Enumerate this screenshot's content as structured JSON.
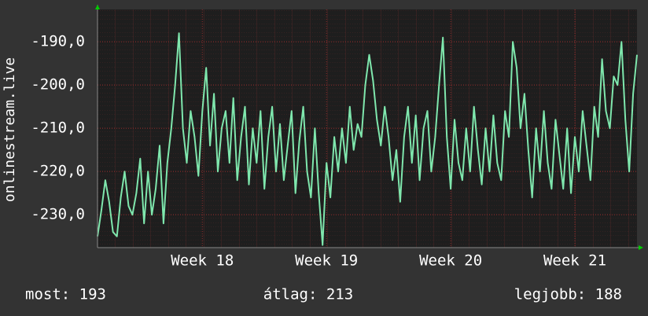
{
  "y_axis_label": "onlinestream.live",
  "chart_data": {
    "type": "line",
    "color": "#7fe7ad",
    "grid": true,
    "xlim": [
      0,
      139
    ],
    "xticks": [
      {
        "value": 27,
        "label": "Week 18"
      },
      {
        "value": 59,
        "label": "Week 19"
      },
      {
        "value": 91,
        "label": "Week 20"
      },
      {
        "value": 123,
        "label": "Week 21"
      }
    ],
    "ylim": [
      -237.6,
      -182.5
    ],
    "yticks": [
      {
        "value": -230,
        "label": "-230,0"
      },
      {
        "value": -220,
        "label": "-220,0"
      },
      {
        "value": -210,
        "label": "-210,0"
      },
      {
        "value": -200,
        "label": "-200,0"
      },
      {
        "value": -190,
        "label": "-190,0"
      }
    ],
    "values": [
      -235,
      -229,
      -222,
      -227,
      -234,
      -235,
      -226,
      -220,
      -228,
      -230,
      -225,
      -217,
      -232,
      -220,
      -230,
      -224,
      -214,
      -232,
      -218,
      -210,
      -200,
      -188,
      -210,
      -218,
      -206,
      -212,
      -221,
      -206,
      -196,
      -214,
      -202,
      -220,
      -210,
      -206,
      -218,
      -203,
      -222,
      -212,
      -205,
      -223,
      -210,
      -218,
      -206,
      -224,
      -212,
      -205,
      -220,
      -209,
      -222,
      -214,
      -206,
      -225,
      -213,
      -205,
      -220,
      -226,
      -210,
      -225,
      -237,
      -218,
      -226,
      -212,
      -220,
      -210,
      -218,
      -205,
      -215,
      -209,
      -212,
      -200,
      -193,
      -199,
      -208,
      -214,
      -205,
      -212,
      -222,
      -215,
      -227,
      -212,
      -205,
      -218,
      -207,
      -222,
      -210,
      -206,
      -220,
      -212,
      -200,
      -189,
      -212,
      -224,
      -208,
      -218,
      -222,
      -210,
      -220,
      -205,
      -215,
      -223,
      -210,
      -220,
      -207,
      -218,
      -222,
      -206,
      -212,
      -190,
      -196,
      -210,
      -202,
      -215,
      -226,
      -210,
      -220,
      -206,
      -218,
      -224,
      -208,
      -216,
      -224,
      -210,
      -225,
      -212,
      -220,
      -206,
      -214,
      -222,
      -205,
      -212,
      -194,
      -206,
      -210,
      -198,
      -200,
      -190,
      -208,
      -220,
      -202,
      -193
    ]
  },
  "footer": {
    "current": "most: 193",
    "average": "átlag: 213",
    "best": "legjobb: 188"
  }
}
